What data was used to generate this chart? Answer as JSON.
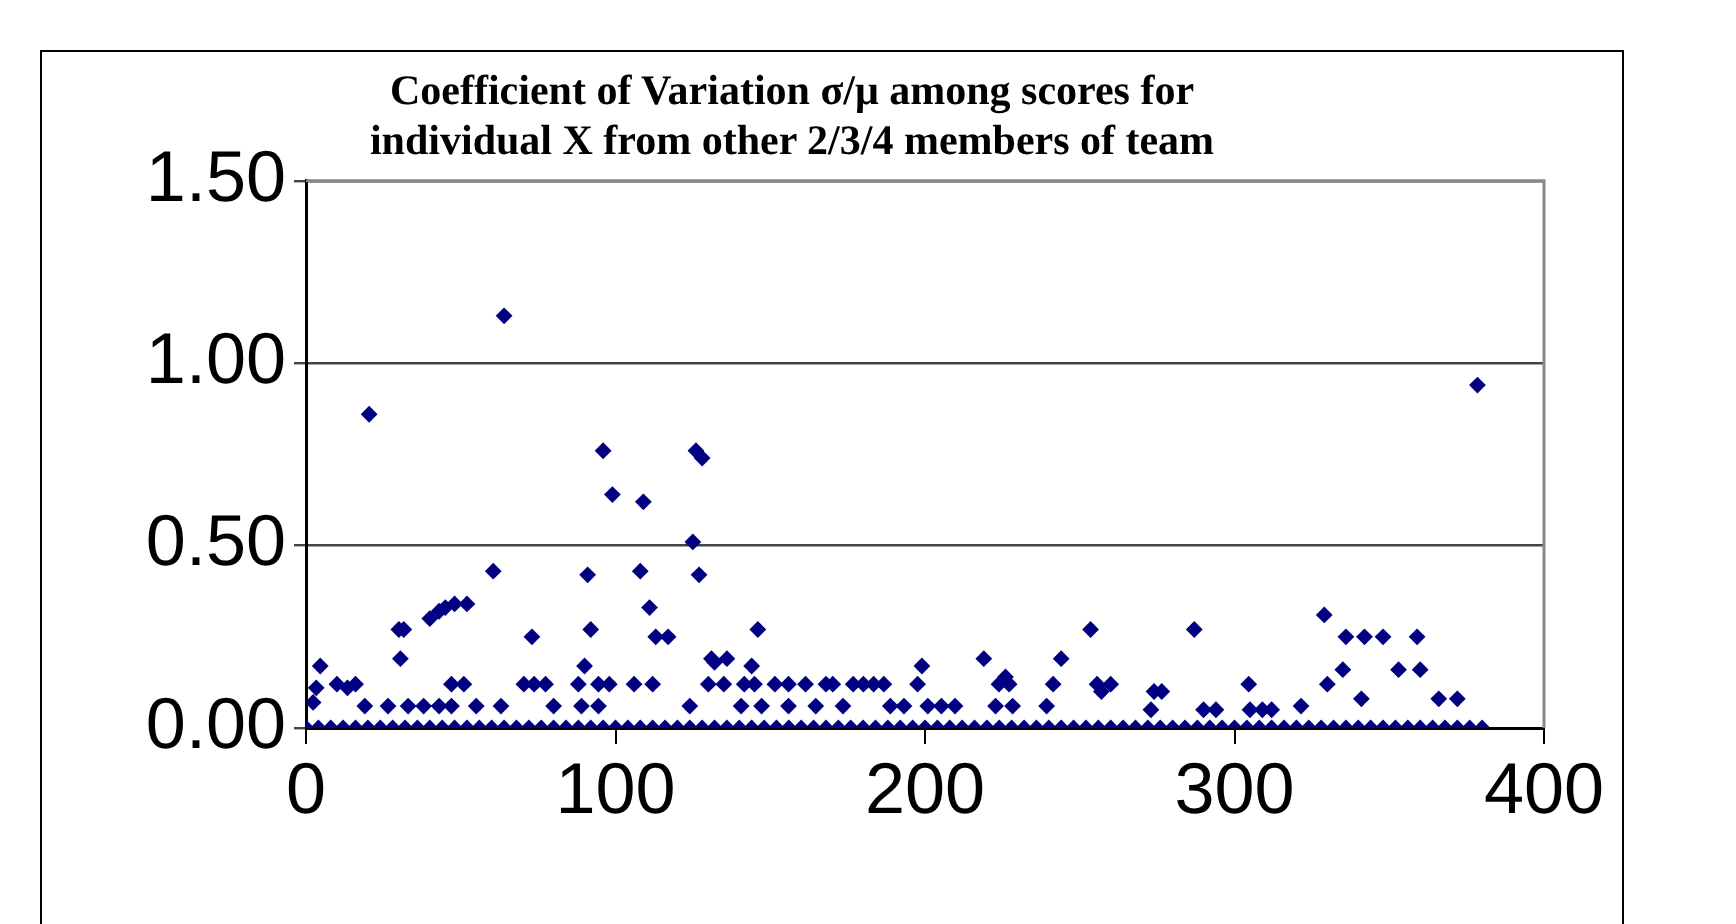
{
  "chart_data": {
    "type": "scatter",
    "title": "Coefficient of Variation σ/μ among scores for individual X from other 2/3/4 members of team",
    "series": [
      {
        "color": "#000080",
        "x": [
          0,
          4,
          8,
          12,
          16,
          20,
          24,
          28,
          32,
          36,
          40,
          44,
          48,
          52,
          56,
          60,
          64,
          68,
          72,
          76,
          80,
          84,
          88,
          92,
          96,
          100,
          104,
          108,
          112,
          116,
          120,
          124,
          128,
          132,
          136,
          140,
          144,
          148,
          152,
          156,
          160,
          164,
          168,
          172,
          176,
          180,
          184,
          188,
          192,
          196,
          200,
          204,
          208,
          212,
          216,
          220,
          224,
          228,
          232,
          236,
          240,
          244,
          248,
          252,
          256,
          260,
          264,
          268,
          272,
          276,
          280,
          284,
          288,
          292,
          296,
          300,
          304,
          308,
          312,
          316,
          320,
          324,
          328,
          332,
          336,
          340,
          344,
          348,
          352,
          356,
          360,
          364,
          368,
          372,
          376,
          380,
          64,
          20.4,
          96,
          99,
          109,
          126,
          128,
          125,
          127,
          60.5,
          91,
          108,
          111,
          113,
          117,
          73,
          92,
          30,
          31.6,
          30.5,
          40,
          43,
          45,
          48,
          52,
          4.6,
          3.3,
          2.3,
          10,
          13.4,
          16,
          19,
          26.5,
          33,
          38,
          43,
          47,
          55,
          63,
          80,
          89,
          94.5,
          124,
          47,
          51,
          70.4,
          73.7,
          77.4,
          88,
          94.5,
          98,
          106,
          112,
          130,
          135,
          90,
          136,
          146,
          131,
          132,
          144,
          199,
          219,
          244,
          253.5,
          141.6,
          144.9,
          151.5,
          155.9,
          161.4,
          168,
          170.2,
          176.8,
          180.1,
          183.4,
          186.7,
          197.6,
          223.9,
          227.2,
          241.4,
          255.6,
          260,
          140.6,
          147.2,
          155.9,
          164.7,
          173.5,
          188.8,
          193.2,
          200.9,
          205.3,
          209.7,
          222.8,
          228.3,
          239.3,
          226,
          378.5,
          329,
          287,
          336,
          342,
          348,
          359,
          335,
          330,
          353,
          360,
          304.6,
          341,
          366,
          372,
          321.5,
          257,
          274,
          276.5,
          273,
          290,
          294,
          305,
          309,
          312
        ],
        "values": [
          0,
          0,
          0,
          0,
          0,
          0,
          0,
          0,
          0,
          0,
          0,
          0,
          0,
          0,
          0,
          0,
          0,
          0,
          0,
          0,
          0,
          0,
          0,
          0,
          0,
          0,
          0,
          0,
          0,
          0,
          0,
          0,
          0,
          0,
          0,
          0,
          0,
          0,
          0,
          0,
          0,
          0,
          0,
          0,
          0,
          0,
          0,
          0,
          0,
          0,
          0,
          0,
          0,
          0,
          0,
          0,
          0,
          0,
          0,
          0,
          0,
          0,
          0,
          0,
          0,
          0,
          0,
          0,
          0,
          0,
          0,
          0,
          0,
          0,
          0,
          0,
          0,
          0,
          0,
          0,
          0,
          0,
          0,
          0,
          0,
          0,
          0,
          0,
          0,
          0,
          0,
          0,
          0,
          0,
          0,
          0,
          1.13,
          0.86,
          0.76,
          0.64,
          0.62,
          0.76,
          0.74,
          0.51,
          0.42,
          0.43,
          0.42,
          0.43,
          0.33,
          0.25,
          0.25,
          0.25,
          0.27,
          0.27,
          0.27,
          0.19,
          0.3,
          0.32,
          0.33,
          0.34,
          0.34,
          0.17,
          0.11,
          0.07,
          0.12,
          0.11,
          0.12,
          0.06,
          0.06,
          0.06,
          0.06,
          0.06,
          0.06,
          0.06,
          0.06,
          0.06,
          0.06,
          0.06,
          0.06,
          0.12,
          0.12,
          0.12,
          0.12,
          0.12,
          0.12,
          0.12,
          0.12,
          0.12,
          0.12,
          0.12,
          0.12,
          0.17,
          0.19,
          0.27,
          0.19,
          0.18,
          0.17,
          0.17,
          0.19,
          0.19,
          0.27,
          0.12,
          0.12,
          0.12,
          0.12,
          0.12,
          0.12,
          0.12,
          0.12,
          0.12,
          0.12,
          0.12,
          0.12,
          0.12,
          0.12,
          0.12,
          0.12,
          0.12,
          0.06,
          0.06,
          0.06,
          0.06,
          0.06,
          0.06,
          0.06,
          0.06,
          0.06,
          0.06,
          0.06,
          0.06,
          0.06,
          0.14,
          0.94,
          0.31,
          0.27,
          0.25,
          0.25,
          0.25,
          0.25,
          0.16,
          0.12,
          0.16,
          0.16,
          0.12,
          0.08,
          0.08,
          0.08,
          0.06,
          0.1,
          0.1,
          0.1,
          0.05,
          0.05,
          0.05,
          0.05,
          0.05,
          0.05
        ]
      }
    ],
    "xlim": [
      0,
      400
    ],
    "xticks": [
      0,
      100,
      200,
      300,
      400
    ],
    "ylim": [
      0,
      1.5
    ],
    "yticks": [
      {
        "value": 0,
        "label": "0.00"
      },
      {
        "value": 0.5,
        "label": "0.50"
      },
      {
        "value": 1,
        "label": "1.00"
      },
      {
        "value": 1.5,
        "label": "1.50"
      }
    ],
    "grid": "y",
    "marker": "diamond",
    "legend": false
  }
}
